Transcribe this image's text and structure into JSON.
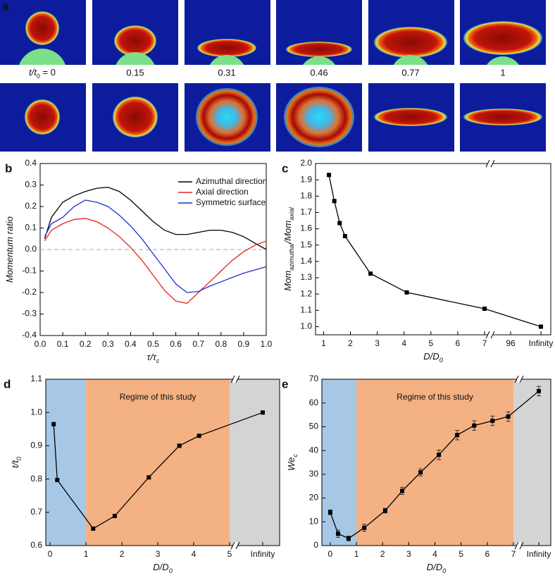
{
  "panel_a": {
    "panel": "a",
    "time_labels": [
      [
        {
          "text": "t/t",
          "italic": true
        },
        {
          "text": "0",
          "sub": true
        },
        {
          "text": " = 0"
        }
      ],
      "0.15",
      "0.31",
      "0.46",
      "0.77",
      "1"
    ]
  },
  "chart_data": [
    {
      "type": "line",
      "panel": "b",
      "xlabel": [
        {
          "text": "τ/τ"
        },
        {
          "text": "c",
          "sub": true
        }
      ],
      "ylabel": [
        {
          "text": "Momentum ratio"
        }
      ],
      "x": [
        0.02,
        0.05,
        0.1,
        0.15,
        0.2,
        0.25,
        0.3,
        0.35,
        0.4,
        0.45,
        0.5,
        0.55,
        0.6,
        0.65,
        0.7,
        0.75,
        0.8,
        0.85,
        0.9,
        0.95,
        1.0
      ],
      "series": [
        {
          "name": "Azimuthal direction",
          "color": "#000000",
          "values": [
            0.05,
            0.15,
            0.22,
            0.25,
            0.27,
            0.285,
            0.29,
            0.27,
            0.23,
            0.18,
            0.13,
            0.09,
            0.07,
            0.07,
            0.08,
            0.09,
            0.09,
            0.08,
            0.06,
            0.03,
            0.0
          ]
        },
        {
          "name": "Axial direction",
          "color": "#e8231f",
          "values": [
            0.04,
            0.09,
            0.12,
            0.14,
            0.145,
            0.13,
            0.1,
            0.06,
            0.01,
            -0.05,
            -0.12,
            -0.19,
            -0.24,
            -0.25,
            -0.2,
            -0.15,
            -0.1,
            -0.05,
            -0.01,
            0.02,
            0.04
          ]
        },
        {
          "name": "Symmetric surface",
          "color": "#1f2fd0",
          "values": [
            0.06,
            0.12,
            0.15,
            0.2,
            0.23,
            0.22,
            0.2,
            0.16,
            0.11,
            0.05,
            -0.02,
            -0.09,
            -0.16,
            -0.2,
            -0.195,
            -0.17,
            -0.15,
            -0.13,
            -0.11,
            -0.095,
            -0.08
          ]
        }
      ],
      "xlim": [
        0,
        1
      ],
      "ylim": [
        -0.4,
        0.4
      ],
      "xticks": [
        {
          "value": 0,
          "label": "0.0"
        },
        0.1,
        0.2,
        0.3,
        0.4,
        0.5,
        0.6,
        0.7,
        0.8,
        0.9,
        {
          "value": 1,
          "label": "1.0"
        }
      ],
      "yticks": [
        -0.4,
        -0.3,
        -0.2,
        -0.1,
        {
          "value": 0,
          "label": "0.0"
        },
        0.1,
        0.2,
        0.3,
        0.4
      ],
      "reference_line": 0,
      "legend": "upper right"
    },
    {
      "type": "line",
      "panel": "c",
      "markers": "square",
      "color": "#000000",
      "xlabel": [
        {
          "text": "D/D"
        },
        {
          "text": "0",
          "sub": true
        }
      ],
      "ylabel": [
        {
          "text": "Mom"
        },
        {
          "text": "azimuthal",
          "sub": true
        },
        {
          "text": "/Mom"
        },
        {
          "text": "axial",
          "sub": true
        }
      ],
      "x": [
        1.2,
        1.4,
        1.6,
        1.8,
        2.75,
        4.1,
        7,
        "Infinity"
      ],
      "values": [
        1.93,
        1.77,
        1.635,
        1.555,
        1.325,
        1.21,
        1.11,
        1.0
      ],
      "xlim": [
        0.7,
        7
      ],
      "ylim": [
        0.95,
        2.0
      ],
      "xticks": [
        1,
        2,
        3,
        4,
        5,
        6,
        7,
        96,
        "Infinity"
      ],
      "yticks": [
        {
          "value": 1,
          "label": "1.0"
        },
        1.1,
        1.2,
        1.3,
        1.4,
        1.5,
        1.6,
        1.7,
        1.8,
        1.9,
        {
          "value": 2,
          "label": "2.0"
        }
      ]
    },
    {
      "type": "line",
      "panel": "d",
      "markers": "square",
      "color": "#000000",
      "xlabel": [
        {
          "text": "D/D"
        },
        {
          "text": "0",
          "sub": true
        }
      ],
      "ylabel": [
        {
          "text": "t/t"
        },
        {
          "text": "0",
          "sub": true
        }
      ],
      "x": [
        0.1,
        0.2,
        1.2,
        1.8,
        2.75,
        3.6,
        4.15,
        "Infinity"
      ],
      "values": [
        0.965,
        0.797,
        0.651,
        0.689,
        0.805,
        0.9,
        0.93,
        1.0
      ],
      "xlim": [
        -0.12,
        5
      ],
      "ylim": [
        0.6,
        1.1
      ],
      "xticks": [
        0,
        1,
        2,
        3,
        4,
        5,
        "Infinity"
      ],
      "yticks": [
        0.6,
        0.7,
        0.8,
        0.9,
        {
          "value": 1,
          "label": "1.0"
        },
        1.1
      ],
      "regions": [
        {
          "to": 1,
          "color": "#a6c8e6"
        },
        {
          "to": 5,
          "color": "#f4b183"
        },
        {
          "color": "#d4d4d4"
        }
      ],
      "annotation": "Regime of this study"
    },
    {
      "type": "line",
      "panel": "e",
      "markers": "square",
      "color": "#000000",
      "xlabel": [
        {
          "text": "D/D"
        },
        {
          "text": "0",
          "sub": true
        }
      ],
      "ylabel": [
        {
          "text": "We"
        },
        {
          "text": "c",
          "sub": true
        }
      ],
      "x": [
        0.0,
        0.3,
        0.7,
        1.3,
        2.1,
        2.75,
        3.45,
        4.15,
        4.85,
        5.5,
        6.2,
        6.8,
        "Infinity"
      ],
      "values": [
        14,
        5,
        3,
        7.5,
        14.7,
        23,
        30.8,
        38.2,
        46.5,
        50.5,
        52.5,
        54.3,
        65
      ],
      "errors": [
        1,
        1.5,
        1,
        1.5,
        1,
        1.5,
        1.5,
        2,
        2,
        2,
        2,
        2,
        2
      ],
      "xlim": [
        -0.32,
        7
      ],
      "ylim": [
        0,
        70
      ],
      "xticks": [
        0,
        1,
        2,
        3,
        4,
        5,
        6,
        7,
        "Infinity"
      ],
      "yticks": [
        0,
        10,
        20,
        30,
        40,
        50,
        60,
        70
      ],
      "regions": [
        {
          "to": 1,
          "color": "#a6c8e6"
        },
        {
          "to": 7,
          "color": "#f4b183"
        },
        {
          "color": "#d4d4d4"
        }
      ],
      "annotation": "Regime of this study"
    }
  ]
}
